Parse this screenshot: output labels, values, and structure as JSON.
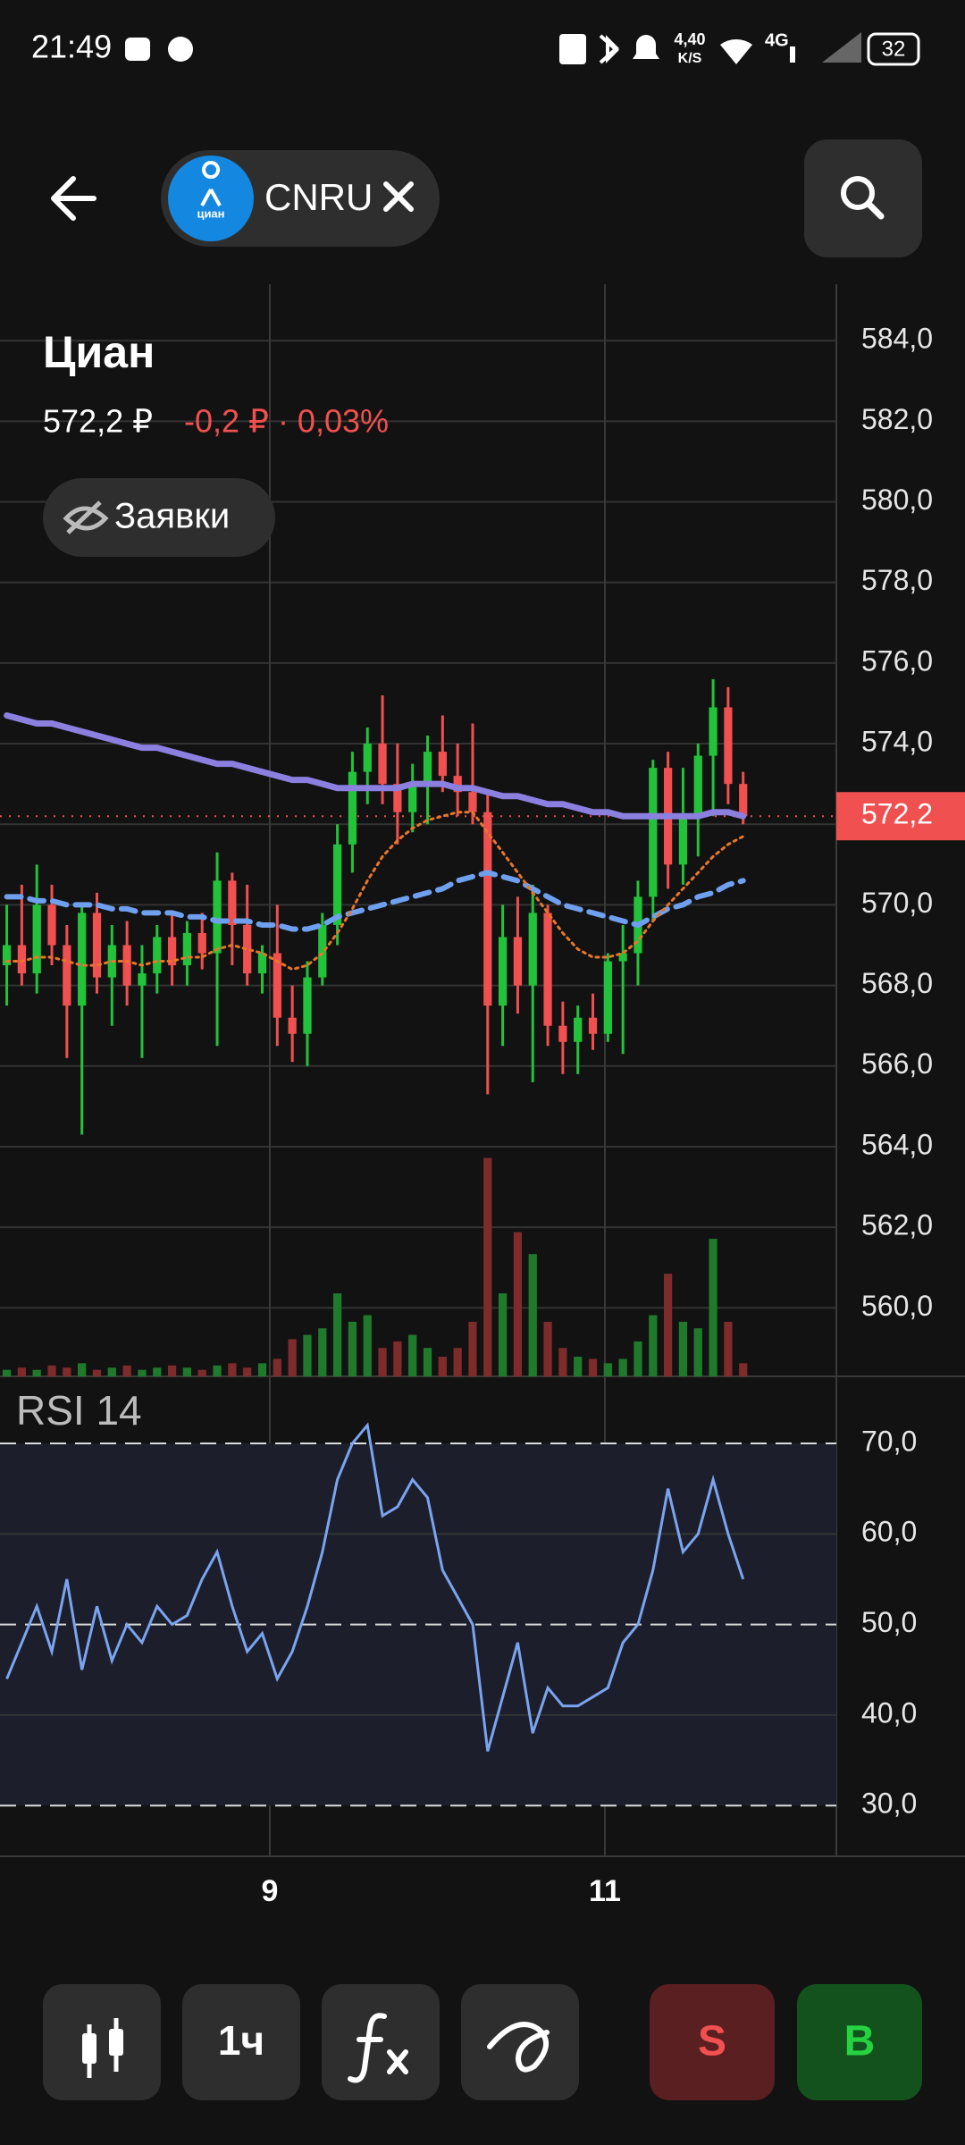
{
  "status_bar": {
    "time": "21:49",
    "net_speed": "4,40",
    "net_unit": "K/S",
    "network": "4G",
    "battery": "32"
  },
  "header": {
    "ticker": "CNRU",
    "logo_text": "циан"
  },
  "instrument": {
    "name": "Циан",
    "price": "572,2 ₽",
    "change": "-0,2 ₽ · 0,03%",
    "orders_button": "Заявки"
  },
  "chart_data": [
    {
      "type": "candlestick",
      "x": [
        0,
        1,
        2,
        3,
        4,
        5,
        6,
        7,
        8,
        9,
        10,
        11,
        12,
        13,
        14,
        15,
        16,
        17,
        18,
        19,
        20,
        21,
        22,
        23,
        24,
        25,
        26,
        27,
        28,
        29,
        30,
        31,
        32,
        33,
        34,
        35,
        36,
        37,
        38,
        39,
        40,
        41,
        42,
        43,
        44,
        45,
        46,
        47,
        48,
        49
      ],
      "open": [
        568.5,
        569,
        568.3,
        570,
        569,
        567.5,
        569.8,
        568.2,
        569,
        568,
        568.3,
        569.2,
        568.5,
        569.3,
        568.8,
        570.6,
        569.5,
        568.3,
        568.8,
        567.2,
        566.8,
        568.2,
        569.5,
        571.5,
        573.3,
        574,
        573,
        572.3,
        573,
        573.8,
        573.2,
        572.8,
        572.3,
        567.5,
        569.2,
        568,
        569.8,
        567,
        566.6,
        567.2,
        566.8,
        568.6,
        568.8,
        570.2,
        573.4,
        571,
        572.2,
        573.7,
        574.9,
        573
      ],
      "high": [
        570,
        570.5,
        571,
        570.5,
        569.5,
        570,
        570.3,
        569.5,
        569.6,
        569,
        569.5,
        569.8,
        569.6,
        569.8,
        571.3,
        570.8,
        570.5,
        569,
        570,
        568,
        568.6,
        569.8,
        572,
        573.8,
        574.4,
        575.2,
        574,
        573.5,
        574.2,
        574.7,
        574,
        574.5,
        572.8,
        570,
        570.2,
        570.5,
        570,
        567.6,
        567.5,
        567.8,
        568.8,
        569.5,
        570.6,
        573.6,
        573.8,
        573.4,
        574,
        575.6,
        575.4,
        573.3
      ],
      "low": [
        567.5,
        568,
        567.8,
        568.5,
        566.2,
        564.3,
        567.8,
        567,
        567.5,
        566.2,
        567.8,
        568,
        568,
        568.4,
        566.5,
        568.5,
        568,
        567.8,
        566.5,
        566.1,
        566,
        568,
        569,
        570.8,
        572.5,
        572.5,
        571.5,
        571.8,
        572,
        572.8,
        572.2,
        572,
        565.3,
        566.5,
        567.3,
        565.6,
        566.5,
        565.8,
        565.8,
        566.4,
        566.6,
        566.3,
        568,
        569.6,
        570.4,
        570.5,
        571.2,
        572.2,
        572.5,
        572
      ],
      "close": [
        569,
        568.3,
        570,
        569,
        567.5,
        569.8,
        568.2,
        569,
        568,
        568.3,
        569.2,
        568.5,
        569.3,
        568.8,
        570.6,
        569.5,
        568.3,
        568.8,
        567.2,
        566.8,
        568.2,
        569.5,
        571.5,
        573.3,
        574,
        573,
        572.3,
        573,
        573.8,
        573.2,
        572.8,
        572.3,
        567.5,
        569.2,
        568,
        569.8,
        567,
        566.6,
        567.2,
        566.8,
        568.6,
        568.8,
        570.2,
        573.4,
        571,
        572.2,
        573.7,
        574.9,
        573,
        572.2
      ],
      "volume": [
        3,
        4,
        3,
        5,
        4,
        6,
        3,
        4,
        5,
        3,
        4,
        5,
        4,
        3,
        5,
        6,
        4,
        6,
        8,
        17,
        19,
        22,
        38,
        25,
        28,
        13,
        16,
        19,
        13,
        9,
        13,
        25,
        100,
        38,
        66,
        56,
        25,
        13,
        9,
        8,
        6,
        8,
        16,
        28,
        47,
        25,
        22,
        63,
        25,
        6
      ],
      "volume_ylim": [
        0,
        500
      ],
      "up_color": "#22c33a",
      "down_color": "#f0504f",
      "volume_up_color": "#1f7a2c",
      "volume_down_color": "#7e2b2b",
      "overlays": [
        {
          "color": "#8b7fe0",
          "style": "solid",
          "values": [
            574.7,
            574.6,
            574.5,
            574.5,
            574.4,
            574.3,
            574.2,
            574.1,
            574.0,
            573.9,
            573.9,
            573.8,
            573.7,
            573.6,
            573.5,
            573.5,
            573.4,
            573.3,
            573.2,
            573.1,
            573.1,
            573.0,
            572.9,
            572.9,
            572.9,
            572.9,
            572.9,
            573.0,
            573.0,
            573.0,
            572.9,
            572.9,
            572.8,
            572.7,
            572.7,
            572.6,
            572.5,
            572.5,
            572.4,
            572.3,
            572.3,
            572.2,
            572.2,
            572.2,
            572.2,
            572.2,
            572.2,
            572.3,
            572.3,
            572.2
          ]
        },
        {
          "color": "#6fa0f0",
          "style": "dashed",
          "values": [
            570.2,
            570.2,
            570.1,
            570.1,
            570.0,
            570.0,
            570.0,
            569.9,
            569.9,
            569.8,
            569.8,
            569.8,
            569.7,
            569.7,
            569.6,
            569.6,
            569.6,
            569.5,
            569.5,
            569.4,
            569.4,
            569.5,
            569.7,
            569.8,
            569.9,
            570.0,
            570.1,
            570.2,
            570.3,
            570.4,
            570.6,
            570.7,
            570.8,
            570.7,
            570.6,
            570.4,
            570.2,
            570.0,
            569.9,
            569.8,
            569.7,
            569.6,
            569.5,
            569.7,
            569.9,
            570.0,
            570.2,
            570.3,
            570.5,
            570.6
          ]
        },
        {
          "color": "#e8762b",
          "style": "dotted",
          "values": [
            568.6,
            568.6,
            568.7,
            568.7,
            568.6,
            568.5,
            568.5,
            568.6,
            568.6,
            568.5,
            568.6,
            568.6,
            568.7,
            568.7,
            568.9,
            569.0,
            568.9,
            568.8,
            568.6,
            568.4,
            568.5,
            568.8,
            569.3,
            569.9,
            570.6,
            571.2,
            571.6,
            571.9,
            572.1,
            572.2,
            572.3,
            572.3,
            571.8,
            571.3,
            570.8,
            570.3,
            569.8,
            569.3,
            568.9,
            568.7,
            568.7,
            568.8,
            569.1,
            569.6,
            570.0,
            570.4,
            570.8,
            571.2,
            571.5,
            571.7
          ]
        }
      ],
      "last_price": 572.2,
      "last_price_label": "572,2",
      "last_price_color": "#f0504f",
      "xlim": [
        -0.45,
        55.2
      ],
      "xticks": [
        {
          "value": 17.5,
          "label": "9"
        },
        {
          "value": 39.8,
          "label": "11"
        }
      ],
      "ylim": [
        558.3,
        585.4
      ],
      "yticks": [
        {
          "value": 560,
          "label": "560,0"
        },
        {
          "value": 562,
          "label": "562,0"
        },
        {
          "value": 564,
          "label": "564,0"
        },
        {
          "value": 566,
          "label": "566,0"
        },
        {
          "value": 568,
          "label": "568,0"
        },
        {
          "value": 570,
          "label": "570,0"
        },
        {
          "value": 572,
          "label": "572,0"
        },
        {
          "value": 574,
          "label": "574,0"
        },
        {
          "value": 576,
          "label": "576,0"
        },
        {
          "value": 578,
          "label": "578,0"
        },
        {
          "value": 580,
          "label": "580,0"
        },
        {
          "value": 582,
          "label": "582,0"
        },
        {
          "value": 584,
          "label": "584,0"
        }
      ],
      "grid": true
    },
    {
      "type": "line",
      "title": "RSI 14",
      "x": [
        0,
        1,
        2,
        3,
        4,
        5,
        6,
        7,
        8,
        9,
        10,
        11,
        12,
        13,
        14,
        15,
        16,
        17,
        18,
        19,
        20,
        21,
        22,
        23,
        24,
        25,
        26,
        27,
        28,
        29,
        30,
        31,
        32,
        33,
        34,
        35,
        36,
        37,
        38,
        39,
        40,
        41,
        42,
        43,
        44,
        45,
        46,
        47,
        48,
        49
      ],
      "series": [
        {
          "color": "#7aa4f0",
          "values": [
            44,
            48,
            52,
            47,
            55,
            45,
            52,
            46,
            50,
            48,
            52,
            50,
            51,
            55,
            58,
            52,
            47,
            49,
            44,
            47,
            52,
            58,
            66,
            70,
            72,
            62,
            63,
            66,
            64,
            56,
            53,
            50,
            36,
            42,
            48,
            38,
            43,
            41,
            41,
            42,
            43,
            48,
            50,
            56,
            65,
            58,
            60,
            66,
            60,
            55
          ]
        }
      ],
      "levels": [
        30,
        50,
        70
      ],
      "band_color": "#1c1f2b",
      "xlim": [
        -0.45,
        55.2
      ],
      "ylim": [
        24.4,
        77.1
      ],
      "yticks": [
        {
          "value": 30,
          "label": "30,0"
        },
        {
          "value": 40,
          "label": "40,0"
        },
        {
          "value": 50,
          "label": "50,0"
        },
        {
          "value": 60,
          "label": "60,0"
        },
        {
          "value": 70,
          "label": "70,0"
        }
      ],
      "grid": true
    }
  ],
  "toolbar": {
    "interval": "1ч",
    "sell": "S",
    "buy": "B"
  }
}
